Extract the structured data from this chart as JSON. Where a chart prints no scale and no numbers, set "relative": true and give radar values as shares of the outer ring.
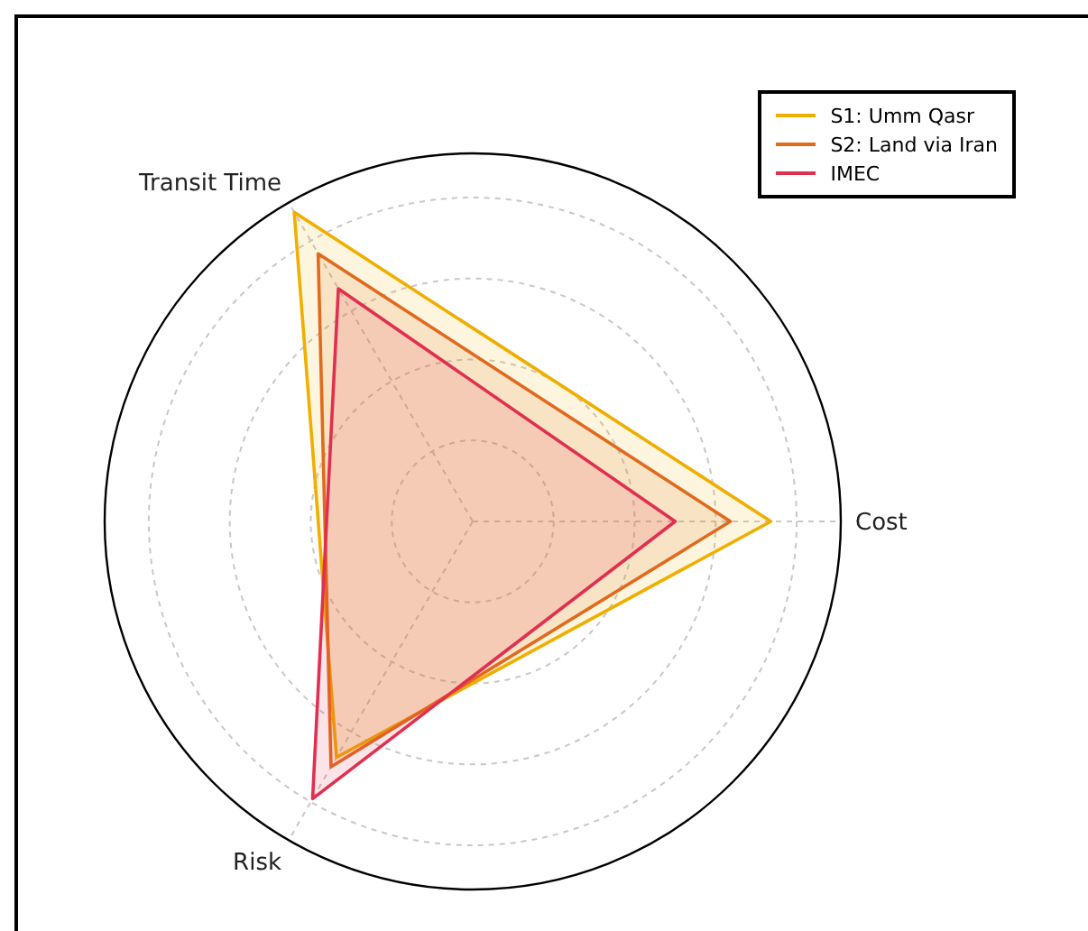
{
  "chart_data": {
    "type": "radar",
    "relative": true,
    "categories": [
      "Cost",
      "Risk",
      "Transit Time"
    ],
    "grid": true,
    "legend": "top right",
    "series": [
      {
        "name": "S1: Umm Qasr",
        "color": "#f0ae00",
        "values": [
          0.81,
          0.74,
          0.97
        ]
      },
      {
        "name": "S2: Land via Iran",
        "color": "#e06a1e",
        "values": [
          0.7,
          0.77,
          0.84
        ]
      },
      {
        "name": "IMEC",
        "color": "#e0304f",
        "values": [
          0.55,
          0.87,
          0.73
        ]
      }
    ]
  }
}
